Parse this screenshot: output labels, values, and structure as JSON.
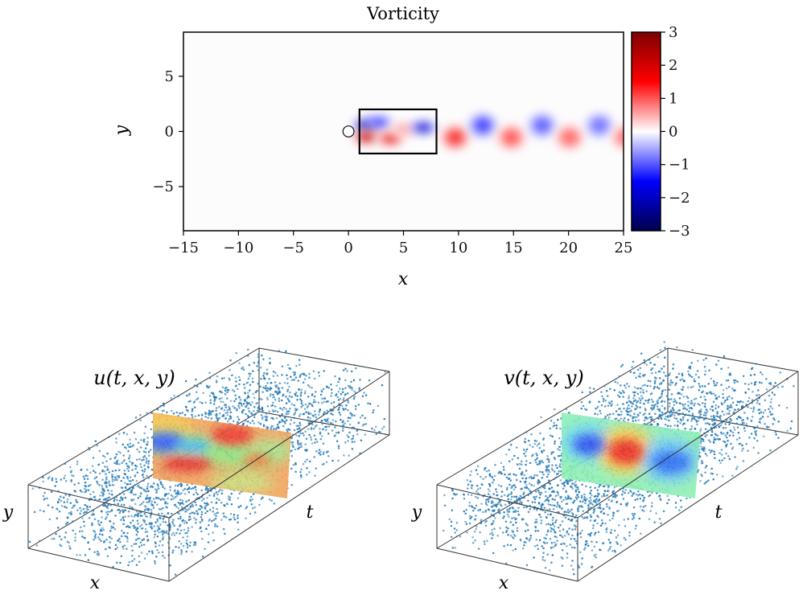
{
  "chart_data": [
    {
      "type": "heatmap",
      "title": "Vorticity",
      "xlabel": "x",
      "ylabel": "y",
      "xlim": [
        -15,
        25
      ],
      "ylim": [
        -9,
        9
      ],
      "xticks": [
        -15,
        -10,
        -5,
        0,
        5,
        10,
        15,
        20,
        25
      ],
      "xtick_labels": [
        "−15",
        "−10",
        "−5",
        "0",
        "5",
        "10",
        "15",
        "20",
        "25"
      ],
      "yticks": [
        5,
        0,
        -5
      ],
      "ytick_labels": [
        "5",
        "0",
        "−5"
      ],
      "colorbar": {
        "range": [
          -3,
          3
        ],
        "ticks": [
          3,
          2,
          1,
          0,
          -1,
          -2,
          -3
        ],
        "tick_labels": [
          "3",
          "2",
          "1",
          "0",
          "−1",
          "−2",
          "−3"
        ],
        "colormap": "seismic",
        "colors": [
          "#00004c",
          "#0000ff",
          "#ffffff",
          "#ff0000",
          "#7f0000"
        ]
      },
      "cylinder": {
        "x": 0,
        "y": 0,
        "radius": 0.5
      },
      "highlight_box": {
        "x": [
          1,
          8
        ],
        "y": [
          -2,
          2
        ]
      },
      "vortices": [
        {
          "x": 1.6,
          "y": 0.55,
          "w": -2.8
        },
        {
          "x": 2.8,
          "y": 0.8,
          "w": -2.0
        },
        {
          "x": 1.6,
          "y": -0.5,
          "w": 2.8
        },
        {
          "x": 3.8,
          "y": -0.65,
          "w": 2.4
        },
        {
          "x": 5.0,
          "y": 0.2,
          "w": 0.9
        },
        {
          "x": 6.8,
          "y": 0.35,
          "w": -2.6
        },
        {
          "x": 9.7,
          "y": -0.55,
          "w": 2.2
        },
        {
          "x": 12.2,
          "y": 0.55,
          "w": -2.0
        },
        {
          "x": 14.8,
          "y": -0.55,
          "w": 1.8
        },
        {
          "x": 17.6,
          "y": 0.55,
          "w": -1.7
        },
        {
          "x": 20.1,
          "y": -0.55,
          "w": 1.6
        },
        {
          "x": 22.8,
          "y": 0.55,
          "w": -1.5
        },
        {
          "x": 25.2,
          "y": -0.55,
          "w": 1.5
        }
      ]
    },
    {
      "type": "scatter",
      "title": "u(t, x, y)",
      "axis_labels": [
        "x",
        "y",
        "t"
      ],
      "marker_color": "#1f77b4",
      "slice_colormap": "jet"
    },
    {
      "type": "scatter",
      "title": "v(t, x, y)",
      "axis_labels": [
        "x",
        "y",
        "t"
      ],
      "marker_color": "#1f77b4",
      "slice_colormap": "jet"
    }
  ]
}
